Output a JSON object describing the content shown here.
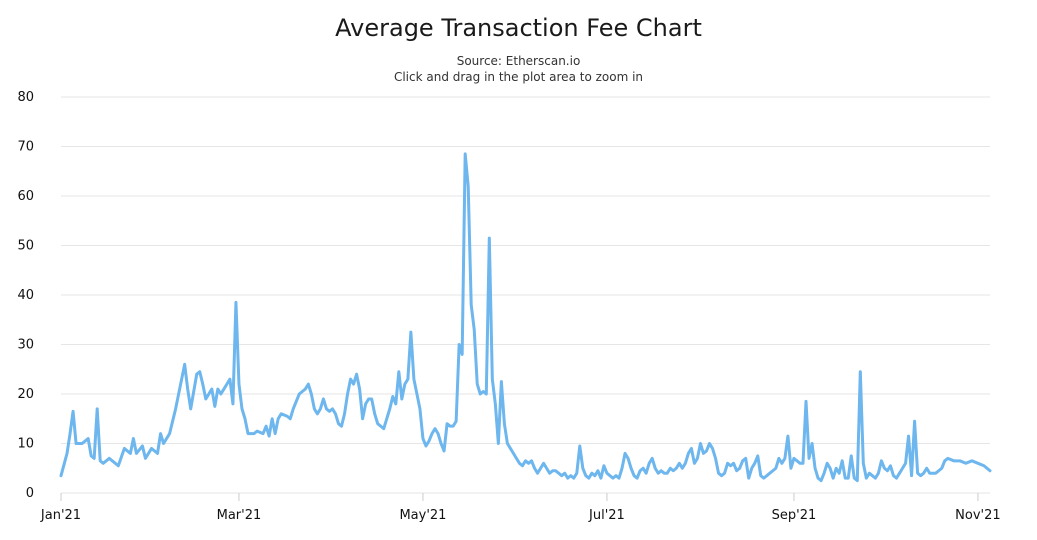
{
  "colors": {
    "series": "#6db6ee",
    "grid": "#e6e6e6",
    "text": "#111111"
  },
  "chart_data": {
    "type": "line",
    "title": "Average Transaction Fee Chart",
    "subtitle": [
      "Source: Etherscan.io",
      "Click and drag in the plot area to zoom in"
    ],
    "xlabel": "",
    "ylabel": "",
    "ylim": [
      0,
      80
    ],
    "yticks": [
      0,
      10,
      20,
      30,
      40,
      50,
      60,
      70,
      80
    ],
    "xlim": [
      "2021-01-01",
      "2021-11-05"
    ],
    "xticks": [
      {
        "date": "2021-01-01",
        "label": "Jan'21"
      },
      {
        "date": "2021-03-01",
        "label": "Mar'21"
      },
      {
        "date": "2021-05-01",
        "label": "May'21"
      },
      {
        "date": "2021-07-01",
        "label": "Jul'21"
      },
      {
        "date": "2021-09-01",
        "label": "Sep'21"
      },
      {
        "date": "2021-11-01",
        "label": "Nov'21"
      }
    ],
    "grid": true,
    "legend": "none",
    "series": [
      {
        "name": "",
        "points": [
          [
            "2021-01-01",
            3.5
          ],
          [
            "2021-01-03",
            8
          ],
          [
            "2021-01-04",
            12
          ],
          [
            "2021-01-05",
            16.5
          ],
          [
            "2021-01-06",
            10
          ],
          [
            "2021-01-08",
            10
          ],
          [
            "2021-01-10",
            11
          ],
          [
            "2021-01-11",
            7.5
          ],
          [
            "2021-01-12",
            7
          ],
          [
            "2021-01-13",
            17
          ],
          [
            "2021-01-14",
            6.5
          ],
          [
            "2021-01-15",
            6
          ],
          [
            "2021-01-17",
            7
          ],
          [
            "2021-01-19",
            6
          ],
          [
            "2021-01-20",
            5.5
          ],
          [
            "2021-01-22",
            9
          ],
          [
            "2021-01-24",
            8
          ],
          [
            "2021-01-25",
            11
          ],
          [
            "2021-01-26",
            8
          ],
          [
            "2021-01-28",
            9.5
          ],
          [
            "2021-01-29",
            7
          ],
          [
            "2021-01-31",
            9
          ],
          [
            "2021-02-02",
            8
          ],
          [
            "2021-02-03",
            12
          ],
          [
            "2021-02-04",
            10
          ],
          [
            "2021-02-06",
            12
          ],
          [
            "2021-02-08",
            17
          ],
          [
            "2021-02-09",
            20
          ],
          [
            "2021-02-11",
            26
          ],
          [
            "2021-02-12",
            21
          ],
          [
            "2021-02-13",
            17
          ],
          [
            "2021-02-15",
            24
          ],
          [
            "2021-02-16",
            24.5
          ],
          [
            "2021-02-17",
            22
          ],
          [
            "2021-02-18",
            19
          ],
          [
            "2021-02-19",
            20
          ],
          [
            "2021-02-20",
            21
          ],
          [
            "2021-02-21",
            17.5
          ],
          [
            "2021-02-22",
            21
          ],
          [
            "2021-02-23",
            20
          ],
          [
            "2021-02-24",
            21
          ],
          [
            "2021-02-25",
            22
          ],
          [
            "2021-02-26",
            23
          ],
          [
            "2021-02-27",
            18
          ],
          [
            "2021-02-28",
            38.5
          ],
          [
            "2021-03-01",
            22
          ],
          [
            "2021-03-02",
            17
          ],
          [
            "2021-03-03",
            15
          ],
          [
            "2021-03-04",
            12
          ],
          [
            "2021-03-06",
            12
          ],
          [
            "2021-03-07",
            12.5
          ],
          [
            "2021-03-09",
            12
          ],
          [
            "2021-03-10",
            13.5
          ],
          [
            "2021-03-11",
            11.5
          ],
          [
            "2021-03-12",
            15
          ],
          [
            "2021-03-13",
            12
          ],
          [
            "2021-03-14",
            15
          ],
          [
            "2021-03-15",
            16
          ],
          [
            "2021-03-17",
            15.5
          ],
          [
            "2021-03-18",
            15
          ],
          [
            "2021-03-19",
            17
          ],
          [
            "2021-03-21",
            20
          ],
          [
            "2021-03-22",
            20.5
          ],
          [
            "2021-03-23",
            21
          ],
          [
            "2021-03-24",
            22
          ],
          [
            "2021-03-25",
            20
          ],
          [
            "2021-03-26",
            17
          ],
          [
            "2021-03-27",
            16
          ],
          [
            "2021-03-28",
            17
          ],
          [
            "2021-03-29",
            19
          ],
          [
            "2021-03-30",
            17
          ],
          [
            "2021-03-31",
            16.5
          ],
          [
            "2021-04-01",
            17
          ],
          [
            "2021-04-02",
            16
          ],
          [
            "2021-04-03",
            14
          ],
          [
            "2021-04-04",
            13.5
          ],
          [
            "2021-04-05",
            16
          ],
          [
            "2021-04-06",
            20
          ],
          [
            "2021-04-07",
            23
          ],
          [
            "2021-04-08",
            22
          ],
          [
            "2021-04-09",
            24
          ],
          [
            "2021-04-10",
            21
          ],
          [
            "2021-04-11",
            15
          ],
          [
            "2021-04-12",
            18
          ],
          [
            "2021-04-13",
            19
          ],
          [
            "2021-04-14",
            19
          ],
          [
            "2021-04-15",
            16
          ],
          [
            "2021-04-16",
            14
          ],
          [
            "2021-04-18",
            13
          ],
          [
            "2021-04-20",
            17
          ],
          [
            "2021-04-21",
            19.5
          ],
          [
            "2021-04-22",
            18
          ],
          [
            "2021-04-23",
            24.5
          ],
          [
            "2021-04-24",
            19
          ],
          [
            "2021-04-25",
            22
          ],
          [
            "2021-04-26",
            23
          ],
          [
            "2021-04-27",
            32.5
          ],
          [
            "2021-04-28",
            23
          ],
          [
            "2021-04-29",
            20
          ],
          [
            "2021-04-30",
            17
          ],
          [
            "2021-05-01",
            11
          ],
          [
            "2021-05-02",
            9.5
          ],
          [
            "2021-05-03",
            10.5
          ],
          [
            "2021-05-04",
            12
          ],
          [
            "2021-05-05",
            13
          ],
          [
            "2021-05-06",
            12
          ],
          [
            "2021-05-07",
            10
          ],
          [
            "2021-05-08",
            8.5
          ],
          [
            "2021-05-09",
            14
          ],
          [
            "2021-05-10",
            13.5
          ],
          [
            "2021-05-11",
            13.5
          ],
          [
            "2021-05-12",
            14.5
          ],
          [
            "2021-05-13",
            30
          ],
          [
            "2021-05-14",
            28
          ],
          [
            "2021-05-15",
            68.5
          ],
          [
            "2021-05-16",
            62
          ],
          [
            "2021-05-17",
            38
          ],
          [
            "2021-05-18",
            33
          ],
          [
            "2021-05-19",
            22
          ],
          [
            "2021-05-20",
            20
          ],
          [
            "2021-05-21",
            20.5
          ],
          [
            "2021-05-22",
            20
          ],
          [
            "2021-05-23",
            51.5
          ],
          [
            "2021-05-24",
            23
          ],
          [
            "2021-05-25",
            18
          ],
          [
            "2021-05-26",
            10
          ],
          [
            "2021-05-27",
            22.5
          ],
          [
            "2021-05-28",
            14
          ],
          [
            "2021-05-29",
            10
          ],
          [
            "2021-05-30",
            9
          ],
          [
            "2021-05-31",
            8
          ],
          [
            "2021-06-01",
            7
          ],
          [
            "2021-06-02",
            6
          ],
          [
            "2021-06-03",
            5.5
          ],
          [
            "2021-06-04",
            6.5
          ],
          [
            "2021-06-05",
            6
          ],
          [
            "2021-06-06",
            6.5
          ],
          [
            "2021-06-07",
            5
          ],
          [
            "2021-06-08",
            4
          ],
          [
            "2021-06-09",
            5
          ],
          [
            "2021-06-10",
            6
          ],
          [
            "2021-06-11",
            5
          ],
          [
            "2021-06-12",
            4
          ],
          [
            "2021-06-13",
            4.5
          ],
          [
            "2021-06-14",
            4.5
          ],
          [
            "2021-06-15",
            4
          ],
          [
            "2021-06-16",
            3.5
          ],
          [
            "2021-06-17",
            4
          ],
          [
            "2021-06-18",
            3
          ],
          [
            "2021-06-19",
            3.5
          ],
          [
            "2021-06-20",
            3
          ],
          [
            "2021-06-21",
            4
          ],
          [
            "2021-06-22",
            9.5
          ],
          [
            "2021-06-23",
            5
          ],
          [
            "2021-06-24",
            3.5
          ],
          [
            "2021-06-25",
            3
          ],
          [
            "2021-06-26",
            4
          ],
          [
            "2021-06-27",
            3.5
          ],
          [
            "2021-06-28",
            4.5
          ],
          [
            "2021-06-29",
            3
          ],
          [
            "2021-06-30",
            5.5
          ],
          [
            "2021-07-01",
            4
          ],
          [
            "2021-07-02",
            3.5
          ],
          [
            "2021-07-03",
            3
          ],
          [
            "2021-07-04",
            3.5
          ],
          [
            "2021-07-05",
            3
          ],
          [
            "2021-07-06",
            5
          ],
          [
            "2021-07-07",
            8
          ],
          [
            "2021-07-08",
            7
          ],
          [
            "2021-07-09",
            5
          ],
          [
            "2021-07-10",
            3.5
          ],
          [
            "2021-07-11",
            3
          ],
          [
            "2021-07-12",
            4.5
          ],
          [
            "2021-07-13",
            5
          ],
          [
            "2021-07-14",
            4
          ],
          [
            "2021-07-15",
            6
          ],
          [
            "2021-07-16",
            7
          ],
          [
            "2021-07-17",
            5
          ],
          [
            "2021-07-18",
            4
          ],
          [
            "2021-07-19",
            4.5
          ],
          [
            "2021-07-20",
            4
          ],
          [
            "2021-07-21",
            4
          ],
          [
            "2021-07-22",
            5
          ],
          [
            "2021-07-23",
            4.5
          ],
          [
            "2021-07-24",
            5
          ],
          [
            "2021-07-25",
            6
          ],
          [
            "2021-07-26",
            5
          ],
          [
            "2021-07-27",
            6
          ],
          [
            "2021-07-28",
            8
          ],
          [
            "2021-07-29",
            9
          ],
          [
            "2021-07-30",
            6
          ],
          [
            "2021-07-31",
            7
          ],
          [
            "2021-08-01",
            10
          ],
          [
            "2021-08-02",
            8
          ],
          [
            "2021-08-03",
            8.5
          ],
          [
            "2021-08-04",
            10
          ],
          [
            "2021-08-05",
            9
          ],
          [
            "2021-08-06",
            7
          ],
          [
            "2021-08-07",
            4
          ],
          [
            "2021-08-08",
            3.5
          ],
          [
            "2021-08-09",
            4
          ],
          [
            "2021-08-10",
            6
          ],
          [
            "2021-08-11",
            5.5
          ],
          [
            "2021-08-12",
            6
          ],
          [
            "2021-08-13",
            4.5
          ],
          [
            "2021-08-14",
            5
          ],
          [
            "2021-08-15",
            6.5
          ],
          [
            "2021-08-16",
            7
          ],
          [
            "2021-08-17",
            3
          ],
          [
            "2021-08-18",
            5
          ],
          [
            "2021-08-19",
            6
          ],
          [
            "2021-08-20",
            7.5
          ],
          [
            "2021-08-21",
            3.5
          ],
          [
            "2021-08-22",
            3
          ],
          [
            "2021-08-23",
            3.5
          ],
          [
            "2021-08-24",
            4
          ],
          [
            "2021-08-25",
            4.5
          ],
          [
            "2021-08-26",
            5
          ],
          [
            "2021-08-27",
            7
          ],
          [
            "2021-08-28",
            6
          ],
          [
            "2021-08-29",
            7
          ],
          [
            "2021-08-30",
            11.5
          ],
          [
            "2021-08-31",
            5
          ],
          [
            "2021-09-01",
            7
          ],
          [
            "2021-09-02",
            6.5
          ],
          [
            "2021-09-03",
            6
          ],
          [
            "2021-09-04",
            6
          ],
          [
            "2021-09-05",
            18.5
          ],
          [
            "2021-09-06",
            7
          ],
          [
            "2021-09-07",
            10
          ],
          [
            "2021-09-08",
            5
          ],
          [
            "2021-09-09",
            3
          ],
          [
            "2021-09-10",
            2.5
          ],
          [
            "2021-09-11",
            4
          ],
          [
            "2021-09-12",
            6
          ],
          [
            "2021-09-13",
            5
          ],
          [
            "2021-09-14",
            3
          ],
          [
            "2021-09-15",
            5
          ],
          [
            "2021-09-16",
            4
          ],
          [
            "2021-09-17",
            6.5
          ],
          [
            "2021-09-18",
            3
          ],
          [
            "2021-09-19",
            3
          ],
          [
            "2021-09-20",
            7.5
          ],
          [
            "2021-09-21",
            3
          ],
          [
            "2021-09-22",
            2.5
          ],
          [
            "2021-09-23",
            24.5
          ],
          [
            "2021-09-24",
            6
          ],
          [
            "2021-09-25",
            3
          ],
          [
            "2021-09-26",
            4
          ],
          [
            "2021-09-27",
            3.5
          ],
          [
            "2021-09-28",
            3
          ],
          [
            "2021-09-29",
            4
          ],
          [
            "2021-09-30",
            6.5
          ],
          [
            "2021-10-01",
            5
          ],
          [
            "2021-10-02",
            4.5
          ],
          [
            "2021-10-03",
            5.5
          ],
          [
            "2021-10-04",
            3.5
          ],
          [
            "2021-10-05",
            3
          ],
          [
            "2021-10-06",
            4
          ],
          [
            "2021-10-07",
            5
          ],
          [
            "2021-10-08",
            6
          ],
          [
            "2021-10-09",
            11.5
          ],
          [
            "2021-10-10",
            3.5
          ],
          [
            "2021-10-11",
            14.5
          ],
          [
            "2021-10-12",
            4
          ],
          [
            "2021-10-13",
            3.5
          ],
          [
            "2021-10-14",
            4
          ],
          [
            "2021-10-15",
            5
          ],
          [
            "2021-10-16",
            4
          ],
          [
            "2021-10-18",
            4
          ],
          [
            "2021-10-19",
            4.5
          ],
          [
            "2021-10-20",
            5
          ],
          [
            "2021-10-21",
            6.5
          ],
          [
            "2021-10-22",
            7
          ],
          [
            "2021-10-24",
            6.5
          ],
          [
            "2021-10-26",
            6.5
          ],
          [
            "2021-10-28",
            6
          ],
          [
            "2021-10-30",
            6.5
          ],
          [
            "2021-11-01",
            6
          ],
          [
            "2021-11-03",
            5.5
          ],
          [
            "2021-11-04",
            5
          ],
          [
            "2021-11-05",
            4.5
          ]
        ]
      }
    ]
  }
}
